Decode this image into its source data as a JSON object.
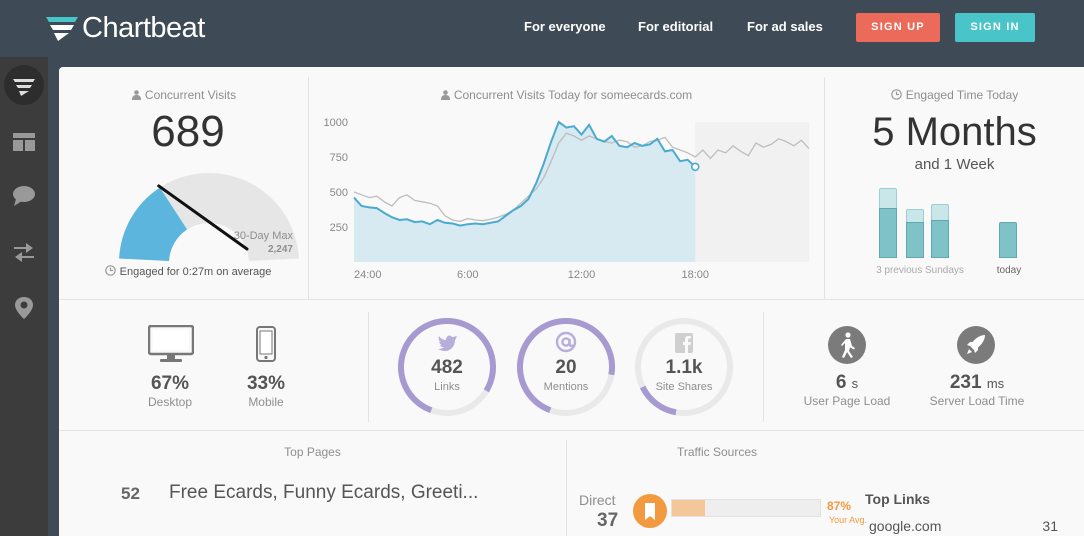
{
  "brand": {
    "name": "Chartbeat"
  },
  "nav": {
    "links": [
      "For everyone",
      "For editorial",
      "For ad sales"
    ],
    "signup": "SIGN UP",
    "signin": "SIGN IN"
  },
  "sidebar": {
    "items": [
      {
        "icon": "chartbeat-logo-icon"
      },
      {
        "icon": "dashboard-layout-icon"
      },
      {
        "icon": "chat-bubble-icon"
      },
      {
        "icon": "transfer-arrows-icon"
      },
      {
        "icon": "map-pin-icon"
      }
    ]
  },
  "concurrent": {
    "title": "Concurrent Visits",
    "value": "689",
    "max_label": "30-Day Max",
    "max_value": "2,247",
    "engaged": "Engaged for 0:27m on average",
    "gauge_fraction": 0.31
  },
  "today_chart": {
    "title": "Concurrent Visits Today for someecards.com"
  },
  "chart_data": {
    "type": "area",
    "title": "Concurrent Visits Today for someecards.com",
    "xlabel": "",
    "ylabel": "",
    "x_ticks": [
      "24:00",
      "6:00",
      "12:00",
      "18:00"
    ],
    "y_ticks": [
      "1000",
      "750",
      "500",
      "250"
    ],
    "ylim": [
      0,
      1000
    ],
    "xlim": [
      0,
      24
    ],
    "series": [
      {
        "values_x": [
          0,
          0.4,
          0.8,
          1.2,
          1.6,
          2,
          2.4,
          2.8,
          3.2,
          3.6,
          4,
          4.4,
          4.8,
          5.2,
          5.6,
          6,
          6.4,
          6.8,
          7.2,
          7.6,
          8,
          8.4,
          8.8,
          9.2,
          9.6,
          10,
          10.4,
          10.8,
          11.2,
          11.6,
          12,
          12.4,
          12.8,
          13.2,
          13.6,
          14,
          14.4,
          14.8,
          15.2,
          15.6,
          16,
          16.4,
          16.8,
          17.2,
          17.6,
          18
        ],
        "values_y": [
          460,
          400,
          390,
          385,
          350,
          320,
          300,
          305,
          285,
          290,
          270,
          300,
          280,
          275,
          260,
          270,
          275,
          270,
          280,
          290,
          330,
          370,
          400,
          450,
          560,
          700,
          860,
          1000,
          960,
          970,
          910,
          980,
          880,
          860,
          900,
          830,
          820,
          850,
          830,
          840,
          880,
          790,
          800,
          720,
          730,
          680
        ]
      },
      {
        "values_x": [
          0,
          0.4,
          0.8,
          1.2,
          1.6,
          2,
          2.4,
          2.8,
          3.2,
          3.6,
          4,
          4.4,
          4.8,
          5.2,
          5.6,
          6,
          6.4,
          6.8,
          7.2,
          7.6,
          8,
          8.4,
          8.8,
          9.2,
          9.6,
          10,
          10.4,
          10.8,
          11.2,
          11.6,
          12,
          12.4,
          12.8,
          13.2,
          13.6,
          14,
          14.4,
          14.8,
          15.2,
          15.6,
          16,
          16.4,
          16.8,
          17.2,
          17.6,
          18,
          18.4,
          18.8,
          19.2,
          19.6,
          20,
          20.4,
          20.8,
          21.2,
          21.6,
          22,
          22.4,
          22.8,
          23.2,
          23.6,
          24
        ],
        "values_y": [
          500,
          480,
          460,
          470,
          430,
          400,
          460,
          480,
          440,
          430,
          420,
          400,
          330,
          300,
          290,
          310,
          300,
          295,
          305,
          320,
          340,
          370,
          420,
          470,
          520,
          600,
          720,
          850,
          920,
          900,
          870,
          900,
          880,
          860,
          850,
          870,
          860,
          820,
          830,
          860,
          870,
          890,
          820,
          800,
          780,
          750,
          800,
          740,
          800,
          780,
          830,
          790,
          760,
          850,
          820,
          840,
          880,
          860,
          830,
          870,
          810
        ]
      }
    ],
    "current_marker": {
      "x": 18,
      "y": 680
    }
  },
  "engaged_time": {
    "title": "Engaged Time Today",
    "value": "5 Months",
    "sub": "and 1 Week",
    "bars_label": "3 previous Sundays",
    "today_label": "today",
    "bars": [
      {
        "total": 1.0,
        "engaged": 0.72
      },
      {
        "total": 0.7,
        "engaged": 0.52
      },
      {
        "total": 0.77,
        "engaged": 0.55
      }
    ],
    "today_bar": 0.52
  },
  "devices": {
    "desktop": {
      "value": "67%",
      "label": "Desktop"
    },
    "mobile": {
      "value": "33%",
      "label": "Mobile"
    }
  },
  "social": [
    {
      "icon": "twitter-bird-icon",
      "value": "482",
      "label": "Links",
      "fraction": 0.78
    },
    {
      "icon": "at-sign-icon",
      "value": "20",
      "label": "Mentions",
      "fraction": 0.72
    },
    {
      "icon": "facebook-icon",
      "value": "1.1k",
      "label": "Site Shares",
      "fraction": 0.15
    }
  ],
  "performance": {
    "user_load": {
      "value": "6",
      "unit": "s",
      "label": "User Page Load"
    },
    "server_load": {
      "value": "231",
      "unit": "ms",
      "label": "Server Load Time"
    }
  },
  "top_pages": {
    "title": "Top Pages",
    "items": [
      {
        "count": "52",
        "title": "Free Ecards, Funny Ecards, Greeti..."
      }
    ]
  },
  "traffic": {
    "title": "Traffic Sources",
    "direct_label": "Direct",
    "direct_value": "37",
    "percent": "87%",
    "percent_sub": "Your Avg.",
    "direct_fraction": 0.87,
    "top_links_title": "Top Links",
    "top_links": [
      {
        "site": "google.com",
        "count": "31"
      }
    ]
  },
  "colors": {
    "accent_blue": "#4aaad0",
    "social_purple": "#a79ad1",
    "engaged_teal": "#7fc3c9",
    "signup": "#ec6a5a",
    "signin": "#49c5c9",
    "direct_orange": "#f29a3f"
  }
}
